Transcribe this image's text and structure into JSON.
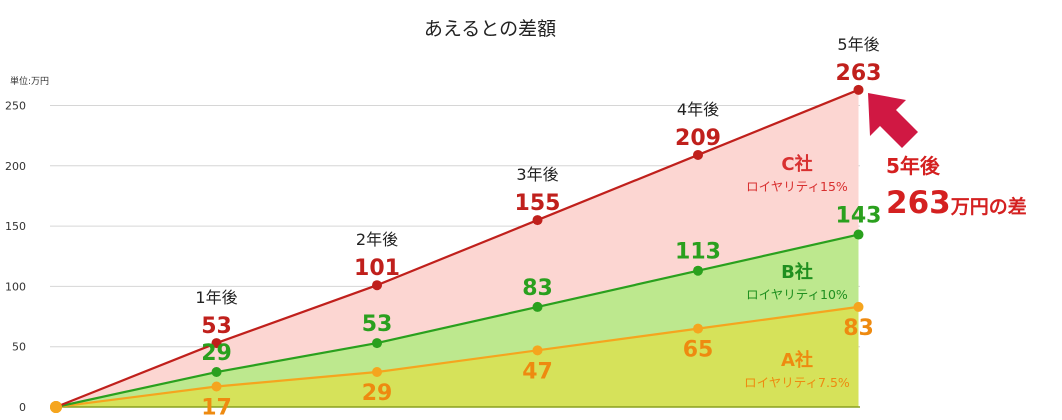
{
  "title": "あえるとの差額",
  "unit_label": "単位:万円",
  "colors": {
    "c_line": "#c0201c",
    "c_fill": "#fcd6d2",
    "b_line": "#2aa01e",
    "b_fill": "#bde88e",
    "a_line": "#f5a51e",
    "a_fill": "#d6e25a",
    "label_c": "#c0201c",
    "label_b": "#2aa01e",
    "label_a": "#ee8a10",
    "brand_c": "#d83030",
    "brand_b": "#1f8f1f",
    "brand_a": "#ee8a10",
    "arrow": "#d01843",
    "callout": "#d42020"
  },
  "chart_data": {
    "type": "area",
    "title": "あえるとの差額",
    "ylabel": "単位:万円",
    "ylim": [
      0,
      263
    ],
    "yticks": [
      0,
      50,
      100,
      150,
      200,
      250
    ],
    "x": [
      0,
      1,
      2,
      3,
      4,
      5
    ],
    "year_labels": [
      "",
      "1年後",
      "2年後",
      "3年後",
      "4年後",
      "5年後"
    ],
    "grid": true,
    "series": [
      {
        "key": "c",
        "name": "C社",
        "sub": "ロイヤリティ15%",
        "values": [
          0,
          53,
          101,
          155,
          209,
          263
        ]
      },
      {
        "key": "b",
        "name": "B社",
        "sub": "ロイヤリティ10%",
        "values": [
          0,
          29,
          53,
          83,
          113,
          143
        ]
      },
      {
        "key": "a",
        "name": "A社",
        "sub": "ロイヤリティ7.5%",
        "values": [
          0,
          17,
          29,
          47,
          65,
          83
        ]
      }
    ],
    "annotation": {
      "line1": "5年後",
      "value": "263",
      "suffix": "万円の差"
    }
  }
}
